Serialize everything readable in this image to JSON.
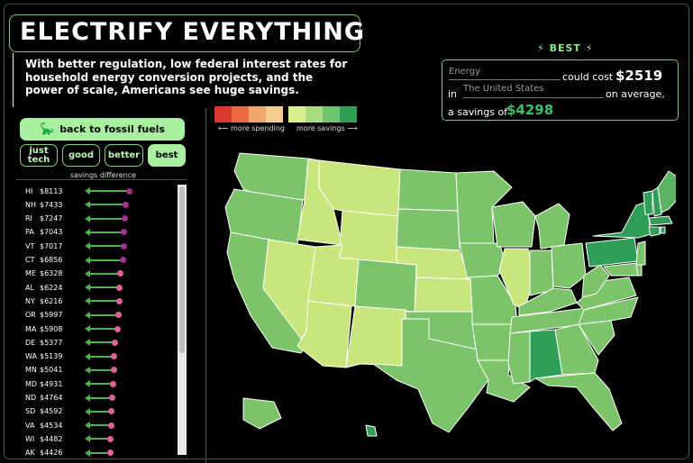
{
  "header": {
    "title": "ELECTRIFY EVERYTHING",
    "subtitle": "With better regulation, low federal interest rates for household energy conversion projects, and the power of scale, Americans see huge savings."
  },
  "controls": {
    "fossil_button": "back to fossil fuels",
    "tiers": [
      "just tech",
      "good",
      "better",
      "best"
    ],
    "active_tier": "best",
    "savings_label": "savings difference"
  },
  "legend": {
    "spending_colors": [
      "#d93a2b",
      "#ea6a3f",
      "#f2a66a",
      "#f5cf8e"
    ],
    "savings_colors": [
      "#d7f08c",
      "#a8dc7e",
      "#6fc56d",
      "#2f9e57"
    ],
    "more_spending": "⟵ more spending",
    "more_savings": "more savings ⟶"
  },
  "summary": {
    "tier_label": "BEST",
    "energy_field": "Energy",
    "could_cost": "could cost",
    "cost_value": "$2519",
    "in_label": "in",
    "region_field": "The United States",
    "on_average": "on average,",
    "savings_prefix": "a savings of",
    "savings_value": "$4298"
  },
  "savings_list": [
    {
      "state": "HI",
      "value": "$8113",
      "amount": 8113
    },
    {
      "state": "NH",
      "value": "$7433",
      "amount": 7433
    },
    {
      "state": "RI",
      "value": "$7247",
      "amount": 7247
    },
    {
      "state": "PA",
      "value": "$7043",
      "amount": 7043
    },
    {
      "state": "VT",
      "value": "$7017",
      "amount": 7017
    },
    {
      "state": "CT",
      "value": "$6856",
      "amount": 6856
    },
    {
      "state": "ME",
      "value": "$6328",
      "amount": 6328
    },
    {
      "state": "AL",
      "value": "$6224",
      "amount": 6224
    },
    {
      "state": "NY",
      "value": "$6216",
      "amount": 6216
    },
    {
      "state": "OR",
      "value": "$5997",
      "amount": 5997
    },
    {
      "state": "MA",
      "value": "$5908",
      "amount": 5908
    },
    {
      "state": "DE",
      "value": "$5377",
      "amount": 5377
    },
    {
      "state": "WA",
      "value": "$5139",
      "amount": 5139
    },
    {
      "state": "MN",
      "value": "$5041",
      "amount": 5041
    },
    {
      "state": "MD",
      "value": "$4931",
      "amount": 4931
    },
    {
      "state": "ND",
      "value": "$4764",
      "amount": 4764
    },
    {
      "state": "SD",
      "value": "$4592",
      "amount": 4592
    },
    {
      "state": "VA",
      "value": "$4534",
      "amount": 4534
    },
    {
      "state": "WI",
      "value": "$4482",
      "amount": 4482
    },
    {
      "state": "AK",
      "value": "$4426",
      "amount": 4426
    }
  ],
  "map_colors": {
    "lightest": "#c8e67c",
    "light": "#a8d970",
    "mid": "#7cc469",
    "dark": "#5cb463",
    "darkest": "#2f9e57",
    "border": "#ffffff"
  }
}
